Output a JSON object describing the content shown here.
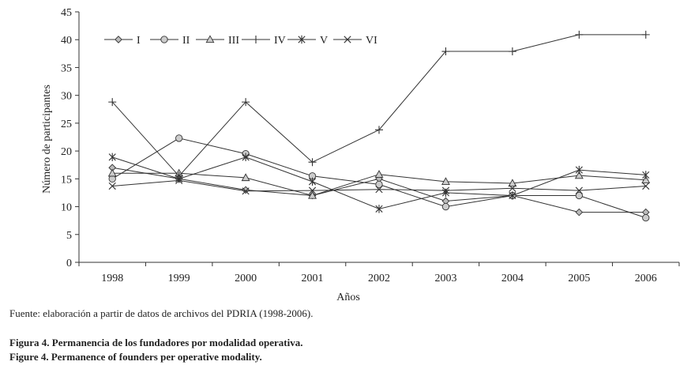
{
  "source_note": "Fuente: elaboración a partir de datos de archivos del PDRIA (1998-2006).",
  "figure_caption_es": "Figura 4. Permanencia de los fundadores por modalidad operativa.",
  "figure_caption_en": "Figure 4. Permanence of founders per operative modality.",
  "chart_data": {
    "type": "line",
    "title": "",
    "xlabel": "Años",
    "ylabel": "Número de participantes",
    "categories": [
      "1998",
      "1999",
      "2000",
      "2001",
      "2002",
      "2003",
      "2004",
      "2005",
      "2006"
    ],
    "ylim": [
      0,
      45
    ],
    "yticks": [
      0,
      5,
      10,
      15,
      20,
      25,
      30,
      35,
      40,
      45
    ],
    "grid": false,
    "legend_position": "top-left",
    "series": [
      {
        "name": "I",
        "marker": "diamond",
        "values": [
          17,
          15,
          13,
          12,
          15,
          11,
          12,
          9,
          9
        ]
      },
      {
        "name": "II",
        "marker": "circle",
        "values": [
          15,
          22.3,
          19.5,
          15.5,
          14,
          10,
          12,
          12,
          8
        ]
      },
      {
        "name": "III",
        "marker": "triangle",
        "values": [
          16,
          16,
          15.2,
          12,
          15.8,
          14.5,
          14.2,
          15.6,
          14.8
        ]
      },
      {
        "name": "IV",
        "marker": "plus",
        "values": [
          28.8,
          15.5,
          28.8,
          18,
          23.8,
          37.9,
          37.9,
          40.9,
          40.9
        ]
      },
      {
        "name": "V",
        "marker": "asterisk",
        "values": [
          18.9,
          15,
          18.9,
          14.5,
          9.6,
          12.5,
          12,
          16.6,
          15.7
        ]
      },
      {
        "name": "VI",
        "marker": "x",
        "values": [
          13.7,
          14.7,
          12.8,
          12.9,
          13.1,
          12.9,
          13.3,
          12.9,
          13.7
        ]
      }
    ]
  }
}
